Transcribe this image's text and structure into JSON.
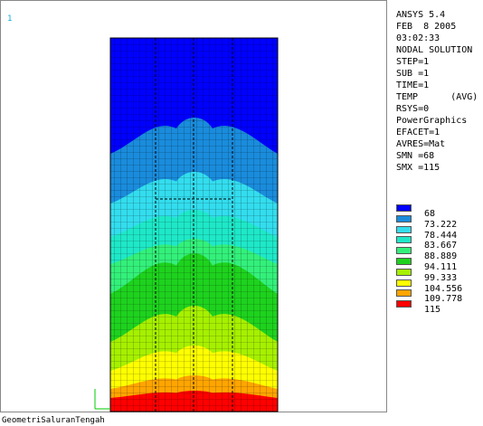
{
  "window_number": "1",
  "info": [
    "ANSYS 5.4",
    "FEB  8 2005",
    "03:02:33",
    "NODAL SOLUTION",
    "STEP=1",
    "SUB =1",
    "TIME=1",
    "TEMP      (AVG)",
    "RSYS=0",
    "PowerGraphics",
    "EFACET=1",
    "AVRES=Mat",
    "SMN =68",
    "SMX =115"
  ],
  "legend": [
    {
      "label": "68",
      "color": "#0000ff"
    },
    {
      "label": "73.222",
      "color": "#1a8cdc"
    },
    {
      "label": "78.444",
      "color": "#33ddee"
    },
    {
      "label": "83.667",
      "color": "#1ee8c8"
    },
    {
      "label": "88.889",
      "color": "#33f07a"
    },
    {
      "label": "94.111",
      "color": "#1ed21e"
    },
    {
      "label": "99.333",
      "color": "#a6f000"
    },
    {
      "label": "104.556",
      "color": "#ffff00"
    },
    {
      "label": "109.778",
      "color": "#ffa500"
    },
    {
      "label": "115",
      "color": "#ff0000"
    }
  ],
  "footer": "GeometriSaluranTengah"
}
